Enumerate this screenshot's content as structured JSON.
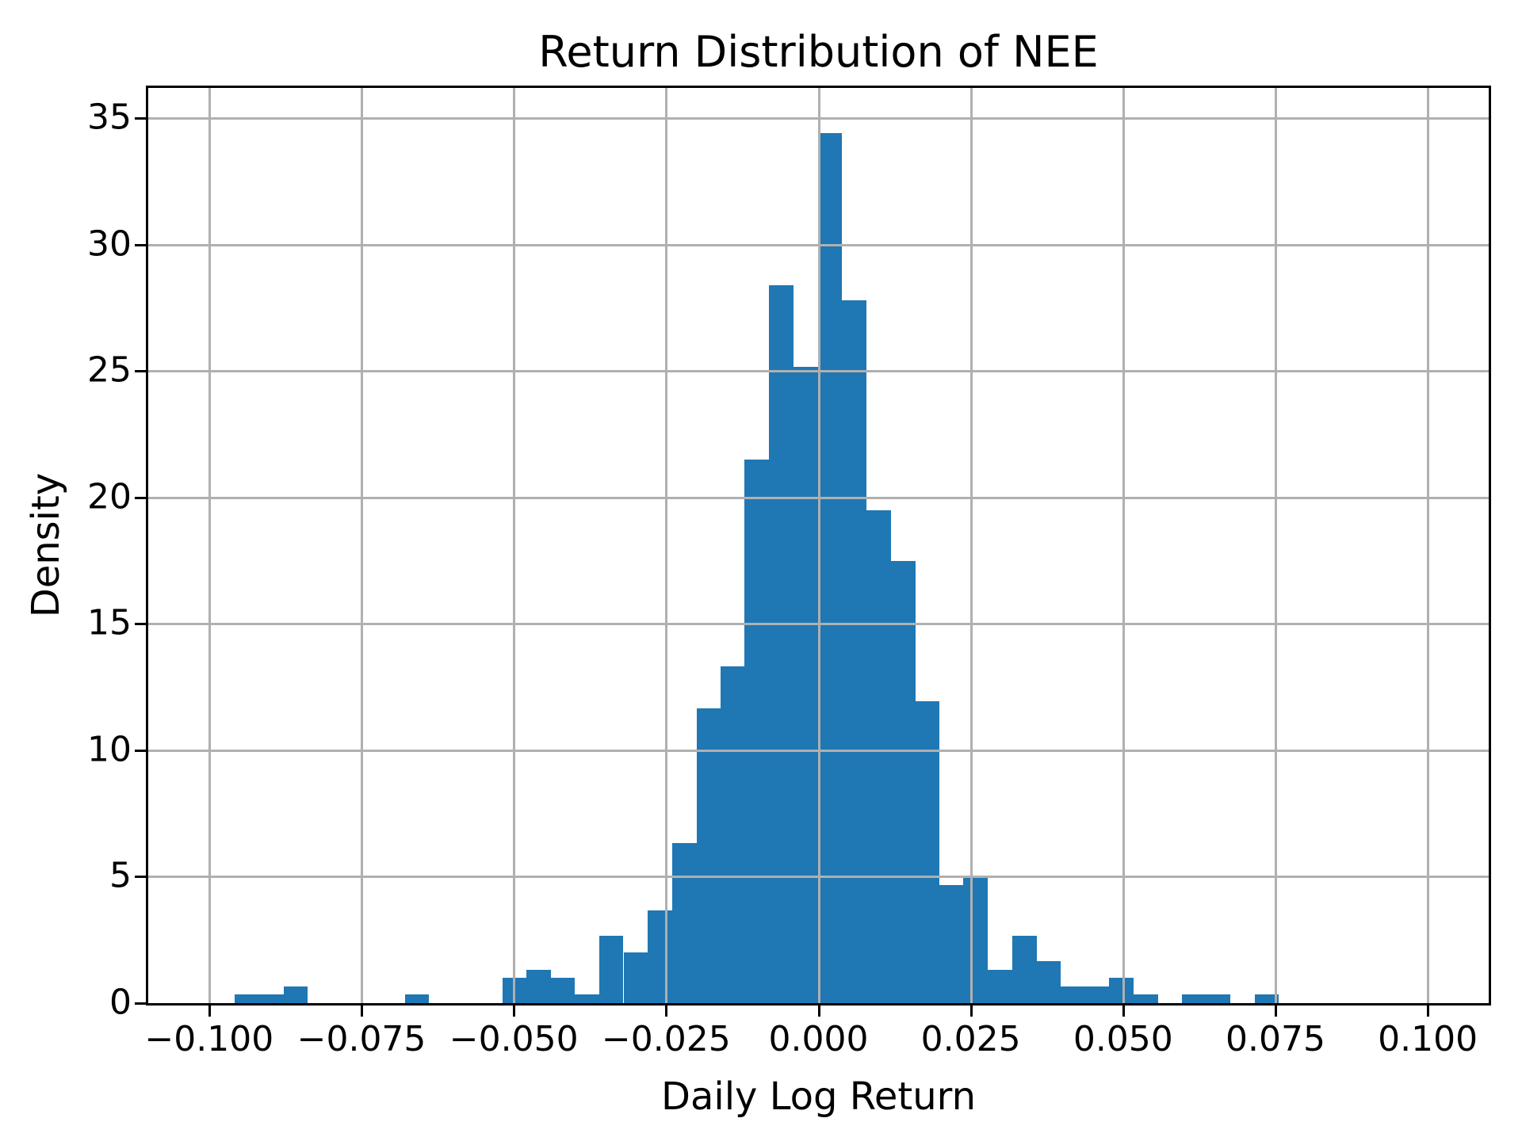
{
  "chart_data": {
    "type": "bar",
    "subtype": "histogram",
    "title": "Return Distribution of NEE",
    "xlabel": "Daily Log Return",
    "ylabel": "Density",
    "xlim": [
      -0.11,
      0.11
    ],
    "ylim": [
      0,
      36.2
    ],
    "grid": true,
    "grid_over_bars": true,
    "legend": "none",
    "bar_color": "#1f77b4",
    "grid_color": "#b0b0b0",
    "axis_color": "#000000",
    "background_color": "#ffffff",
    "bin_width": 0.003985,
    "xticks": [
      {
        "value": -0.1,
        "label": "−0.100"
      },
      {
        "value": -0.075,
        "label": "−0.075"
      },
      {
        "value": -0.05,
        "label": "−0.050"
      },
      {
        "value": -0.025,
        "label": "−0.025"
      },
      {
        "value": 0.0,
        "label": "0.000"
      },
      {
        "value": 0.025,
        "label": "0.025"
      },
      {
        "value": 0.05,
        "label": "0.050"
      },
      {
        "value": 0.075,
        "label": "0.075"
      },
      {
        "value": 0.1,
        "label": "0.100"
      }
    ],
    "yticks": [
      {
        "value": 0,
        "label": "0"
      },
      {
        "value": 5,
        "label": "5"
      },
      {
        "value": 10,
        "label": "10"
      },
      {
        "value": 15,
        "label": "15"
      },
      {
        "value": 20,
        "label": "20"
      },
      {
        "value": 25,
        "label": "25"
      },
      {
        "value": 30,
        "label": "30"
      },
      {
        "value": 35,
        "label": "35"
      }
    ],
    "bins": [
      {
        "left": -0.0958,
        "density": 0.33
      },
      {
        "left": -0.0918,
        "density": 0.33
      },
      {
        "left": -0.0878,
        "density": 0.67
      },
      {
        "left": -0.0679,
        "density": 0.33
      },
      {
        "left": -0.0519,
        "density": 1.0
      },
      {
        "left": -0.0479,
        "density": 1.33
      },
      {
        "left": -0.044,
        "density": 1.0
      },
      {
        "left": -0.04,
        "density": 0.33
      },
      {
        "left": -0.036,
        "density": 2.67
      },
      {
        "left": -0.032,
        "density": 2.0
      },
      {
        "left": -0.028,
        "density": 3.67
      },
      {
        "left": -0.024,
        "density": 6.33
      },
      {
        "left": -0.02,
        "density": 11.67
      },
      {
        "left": -0.0161,
        "density": 13.33
      },
      {
        "left": -0.0121,
        "density": 21.5
      },
      {
        "left": -0.0081,
        "density": 28.4
      },
      {
        "left": -0.0041,
        "density": 25.17
      },
      {
        "left": -0.0001,
        "density": 34.4
      },
      {
        "left": 0.0039,
        "density": 27.8
      },
      {
        "left": 0.0079,
        "density": 19.5
      },
      {
        "left": 0.0119,
        "density": 17.5
      },
      {
        "left": 0.0158,
        "density": 11.94
      },
      {
        "left": 0.0198,
        "density": 4.67
      },
      {
        "left": 0.0238,
        "density": 5.0
      },
      {
        "left": 0.0278,
        "density": 1.33
      },
      {
        "left": 0.0318,
        "density": 2.67
      },
      {
        "left": 0.0357,
        "density": 1.67
      },
      {
        "left": 0.0397,
        "density": 0.67
      },
      {
        "left": 0.0437,
        "density": 0.67
      },
      {
        "left": 0.0477,
        "density": 1.0
      },
      {
        "left": 0.0517,
        "density": 0.33
      },
      {
        "left": 0.0596,
        "density": 0.33
      },
      {
        "left": 0.0636,
        "density": 0.33
      },
      {
        "left": 0.0716,
        "density": 0.33
      }
    ]
  }
}
